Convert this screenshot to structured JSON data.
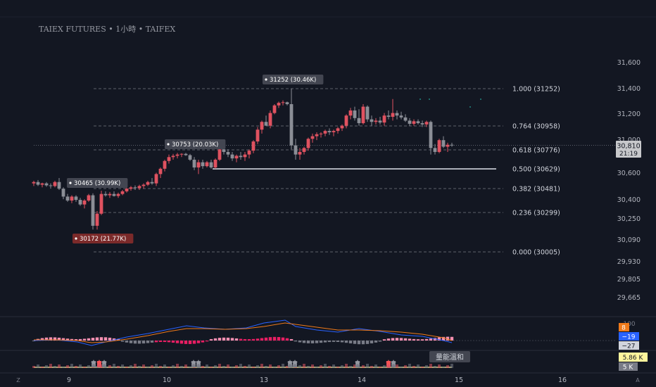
{
  "header": {
    "title": "TAIEX FUTURES • 1小時 • TAIFEX"
  },
  "price_axis": {
    "ticks": [
      "31,600",
      "31,400",
      "31,200",
      "31,000",
      "30,810",
      "30,600",
      "30,400",
      "30,250",
      "30,090",
      "29,930",
      "29,805",
      "29,665"
    ],
    "current_price": "30,810",
    "countdown": "21:19"
  },
  "time_axis": {
    "labels": [
      "9",
      "10",
      "13",
      "14",
      "15",
      "16"
    ],
    "left_icon": "Z",
    "right_icon": "A"
  },
  "fib_levels": [
    {
      "ratio": "1.000",
      "price": 31252,
      "label": "1.000 (31252)"
    },
    {
      "ratio": "0.764",
      "price": 30958,
      "label": "0.764 (30958)"
    },
    {
      "ratio": "0.618",
      "price": 30776,
      "label": "0.618 (30776)"
    },
    {
      "ratio": "0.500",
      "price": 30629,
      "label": "0.500 (30629)"
    },
    {
      "ratio": "0.382",
      "price": 30481,
      "label": "0.382 (30481)"
    },
    {
      "ratio": "0.236",
      "price": 30299,
      "label": "0.236 (30299)"
    },
    {
      "ratio": "0.000",
      "price": 30005,
      "label": "0.000 (30005)"
    }
  ],
  "pivot_labels": [
    {
      "text": "30465 (30.99K)",
      "kind": "high",
      "color": "#434651"
    },
    {
      "text": "30172 (21.77K)",
      "kind": "low",
      "color": "#7b2a2a"
    },
    {
      "text": "30753 (20.03K)",
      "kind": "high",
      "color": "#434651"
    },
    {
      "text": "31252 (30.46K)",
      "kind": "high",
      "color": "#434651"
    }
  ],
  "indicator_badges": {
    "macd_top": "100",
    "hist": "8",
    "macd": "−19",
    "signal": "−27",
    "volume": "5.86 K",
    "volume_scale": "5 K"
  },
  "volume_tooltip": "量能溫和",
  "colors": {
    "background": "#131722",
    "up": "#e05260",
    "down": "#8b8e96",
    "fib_line": "#5d606b",
    "hist_badge": "#ef7a1a",
    "macd_badge": "#2962ff",
    "signal_badge": "#d1d4dc",
    "volume_badge": "#fff59d"
  },
  "chart_data": {
    "type": "candlestick",
    "title": "TAIEX FUTURES • 1小時 • TAIFEX",
    "ylim": [
      29600,
      31650
    ],
    "x_categories": [
      "9",
      "10",
      "13",
      "14",
      "15",
      "16"
    ],
    "current_price": 30810,
    "fib_retracement": {
      "high": 31252,
      "low": 30005
    }
  }
}
